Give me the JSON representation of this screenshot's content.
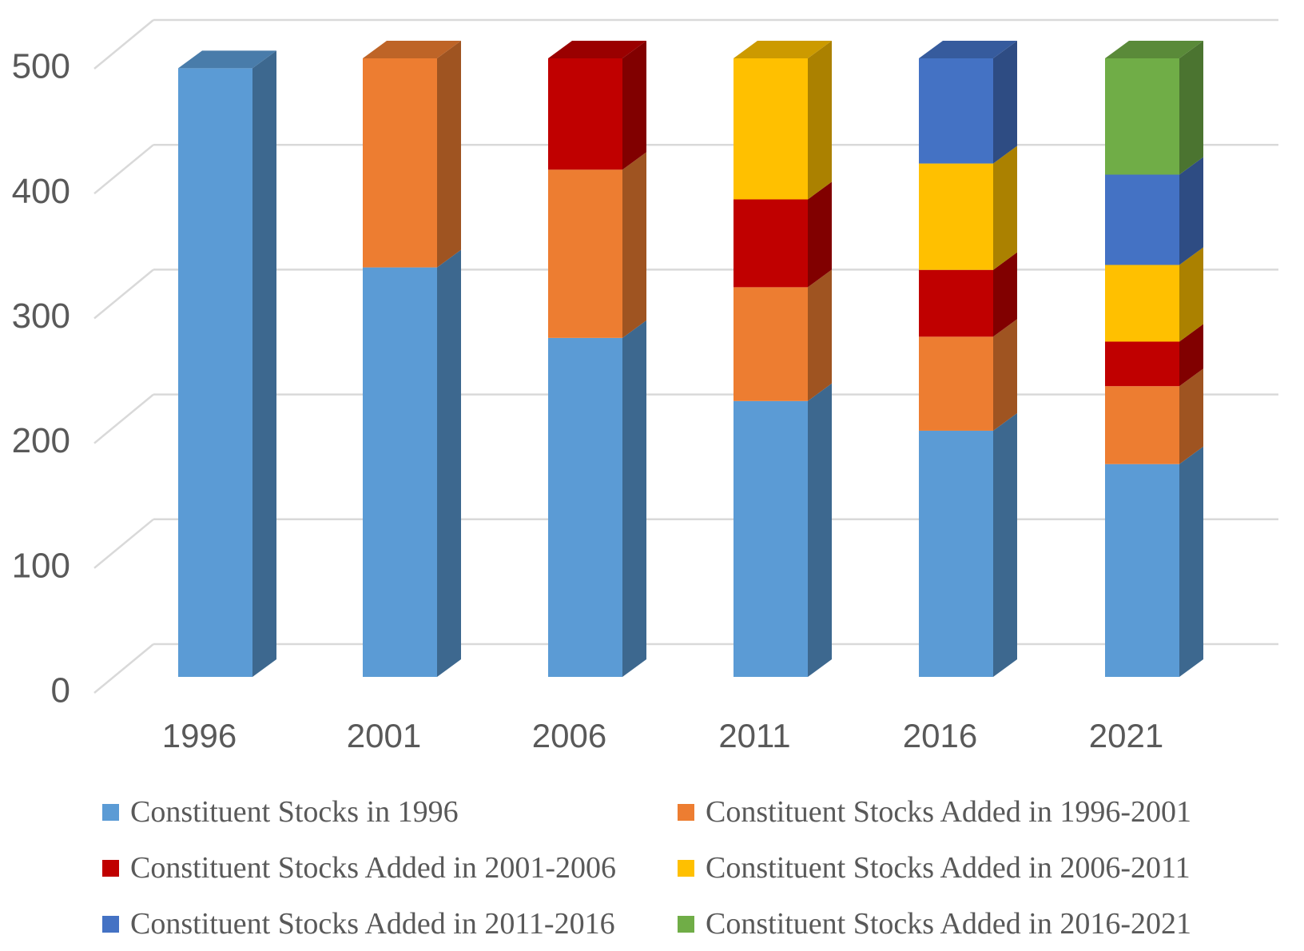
{
  "chart_data": {
    "type": "bar",
    "variant": "3d-stacked-column",
    "title": "",
    "xlabel": "",
    "ylabel": "",
    "categories": [
      "1996",
      "2001",
      "2006",
      "2011",
      "2016",
      "2021"
    ],
    "series": [
      {
        "name": "Constituent Stocks in 1996",
        "color": "#5B9BD5",
        "values": [
          492,
          331,
          274,
          223,
          199,
          172
        ]
      },
      {
        "name": "Constituent Stocks Added in 1996-2001",
        "color": "#ED7D31",
        "values": [
          0,
          169,
          136,
          92,
          76,
          63
        ]
      },
      {
        "name": "Constituent Stocks Added in 2001-2006",
        "color": "#C00000",
        "values": [
          0,
          0,
          90,
          71,
          54,
          36
        ]
      },
      {
        "name": "Constituent Stocks Added in 2006-2011",
        "color": "#FFC000",
        "values": [
          0,
          0,
          0,
          114,
          86,
          62
        ]
      },
      {
        "name": "Constituent Stocks Added in 2011-2016",
        "color": "#4472C4",
        "values": [
          0,
          0,
          0,
          0,
          85,
          73
        ]
      },
      {
        "name": "Constituent Stocks Added in 2016-2021",
        "color": "#70AD47",
        "values": [
          0,
          0,
          0,
          0,
          0,
          94
        ]
      }
    ],
    "stack_totals": [
      492,
      500,
      500,
      500,
      500,
      500
    ],
    "ylim": [
      0,
      500
    ],
    "yticks": [
      0,
      100,
      200,
      300,
      400,
      500
    ],
    "grid": "horizontal",
    "legend_position": "bottom-two-columns"
  },
  "colors": {
    "background": "#FFFFFF",
    "axis_text": "#595959",
    "gridline": "#D9D9D9"
  }
}
